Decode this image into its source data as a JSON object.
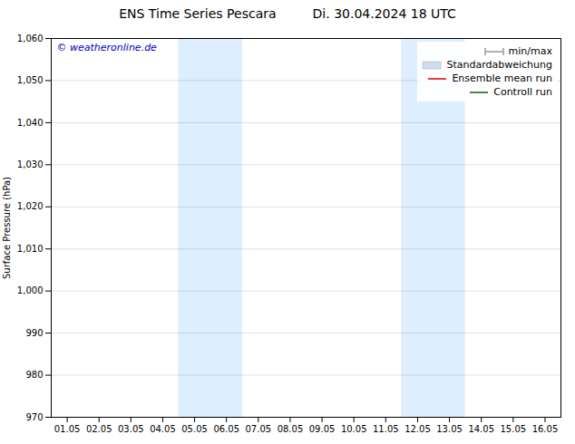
{
  "chart_data": {
    "type": "line",
    "title": "ENS Time Series Pescara",
    "subtitle": "Di. 30.04.2024 18 UTC",
    "ylabel": "Surface Pressure (hPa)",
    "categories": [
      "01.05",
      "02.05",
      "03.05",
      "04.05",
      "05.05",
      "06.05",
      "07.05",
      "08.05",
      "09.05",
      "10.05",
      "11.05",
      "12.05",
      "13.05",
      "14.05",
      "15.05",
      "16.05"
    ],
    "series": [
      {
        "name": "min/max",
        "color": "#999999",
        "type": "range",
        "values": [
          null,
          null,
          null,
          null,
          null,
          null,
          null,
          null,
          null,
          null,
          null,
          null,
          null,
          null,
          null,
          null
        ]
      },
      {
        "name": "Standardabweichung",
        "color": "#ccddee",
        "type": "area",
        "values": [
          null,
          null,
          null,
          null,
          null,
          null,
          null,
          null,
          null,
          null,
          null,
          null,
          null,
          null,
          null,
          null
        ]
      },
      {
        "name": "Ensemble mean run",
        "color": "#dd0000",
        "type": "line",
        "values": [
          null,
          null,
          null,
          null,
          null,
          null,
          null,
          null,
          null,
          null,
          null,
          null,
          null,
          null,
          null,
          null
        ]
      },
      {
        "name": "Controll run",
        "color": "#006600",
        "type": "line",
        "values": [
          null,
          null,
          null,
          null,
          null,
          null,
          null,
          null,
          null,
          null,
          null,
          null,
          null,
          null,
          null,
          null
        ]
      }
    ],
    "ylim": [
      970,
      1060
    ],
    "yticks": [
      970,
      980,
      990,
      1000,
      1010,
      1020,
      1030,
      1040,
      1050,
      1060
    ],
    "grid": true,
    "legend": "upper right",
    "bands": [
      {
        "start": "05.05",
        "end": "06.05",
        "color": "#ddeeff"
      },
      {
        "start": "12.05",
        "end": "13.05",
        "color": "#ddeeff"
      }
    ],
    "annotations": [
      {
        "text": "© weatheronline.de",
        "color": "#0000bb"
      }
    ]
  }
}
